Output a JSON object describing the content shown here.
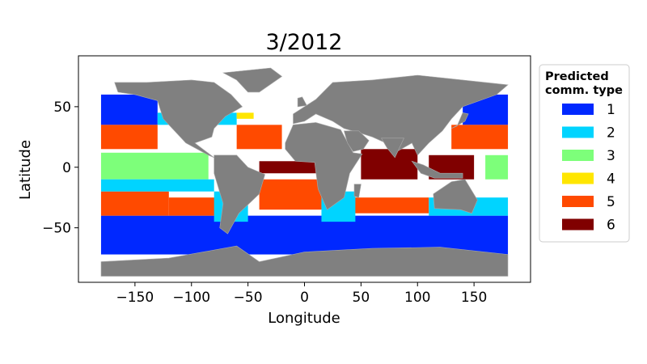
{
  "chart_data": {
    "type": "scatter",
    "title": "3/2012",
    "xlabel": "Longitude",
    "ylabel": "Latitude",
    "xlim": [
      -200,
      200
    ],
    "ylim": [
      -95,
      92
    ],
    "xticks": [
      -150,
      -100,
      -50,
      0,
      50,
      100,
      150
    ],
    "yticks": [
      -50,
      0,
      50
    ],
    "xtick_labels": [
      "−150",
      "−100",
      "−50",
      "0",
      "50",
      "100",
      "150"
    ],
    "ytick_labels": [
      "−50",
      "0",
      "50"
    ],
    "grid": false,
    "legend": {
      "title": "Predicted\ncomm. type",
      "placement": "outside-right",
      "entries": [
        {
          "label": "1",
          "color": "#0028ff"
        },
        {
          "label": "2",
          "color": "#00d4ff"
        },
        {
          "label": "3",
          "color": "#7dff7a"
        },
        {
          "label": "4",
          "color": "#ffe600"
        },
        {
          "label": "5",
          "color": "#ff4a00"
        },
        {
          "label": "6",
          "color": "#800000"
        }
      ]
    },
    "land_color": "#808080",
    "ocean_color": "#ffffff",
    "regions": [
      {
        "type": "1",
        "lon": [
          -180,
          180
        ],
        "lat": [
          -72,
          -40
        ]
      },
      {
        "type": "1",
        "lon": [
          -180,
          -130
        ],
        "lat": [
          35,
          60
        ]
      },
      {
        "type": "1",
        "lon": [
          140,
          180
        ],
        "lat": [
          35,
          60
        ]
      },
      {
        "type": "5",
        "lon": [
          -180,
          -120
        ],
        "lat": [
          -40,
          -20
        ]
      },
      {
        "type": "5",
        "lon": [
          -120,
          -75
        ],
        "lat": [
          -40,
          -25
        ]
      },
      {
        "type": "5",
        "lon": [
          -180,
          -130
        ],
        "lat": [
          15,
          35
        ]
      },
      {
        "type": "5",
        "lon": [
          -60,
          -20
        ],
        "lat": [
          15,
          35
        ]
      },
      {
        "type": "5",
        "lon": [
          130,
          180
        ],
        "lat": [
          15,
          35
        ]
      },
      {
        "type": "5",
        "lon": [
          -40,
          15
        ],
        "lat": [
          -35,
          -10
        ]
      },
      {
        "type": "5",
        "lon": [
          40,
          110
        ],
        "lat": [
          -38,
          -25
        ]
      },
      {
        "type": "3",
        "lon": [
          -180,
          -85
        ],
        "lat": [
          -10,
          12
        ]
      },
      {
        "type": "3",
        "lon": [
          160,
          180
        ],
        "lat": [
          -10,
          10
        ]
      },
      {
        "type": "2",
        "lon": [
          -180,
          -80
        ],
        "lat": [
          -20,
          -10
        ]
      },
      {
        "type": "2",
        "lon": [
          -80,
          -50
        ],
        "lat": [
          -45,
          -20
        ]
      },
      {
        "type": "2",
        "lon": [
          15,
          45
        ],
        "lat": [
          -45,
          -20
        ]
      },
      {
        "type": "2",
        "lon": [
          110,
          180
        ],
        "lat": [
          -40,
          -25
        ]
      },
      {
        "type": "2",
        "lon": [
          -130,
          -60
        ],
        "lat": [
          35,
          45
        ]
      },
      {
        "type": "6",
        "lon": [
          50,
          100
        ],
        "lat": [
          -10,
          15
        ]
      },
      {
        "type": "6",
        "lon": [
          -40,
          10
        ],
        "lat": [
          -5,
          5
        ]
      },
      {
        "type": "6",
        "lon": [
          110,
          150
        ],
        "lat": [
          -10,
          10
        ]
      },
      {
        "type": "4",
        "lon": [
          -60,
          -45
        ],
        "lat": [
          40,
          45
        ]
      }
    ]
  }
}
